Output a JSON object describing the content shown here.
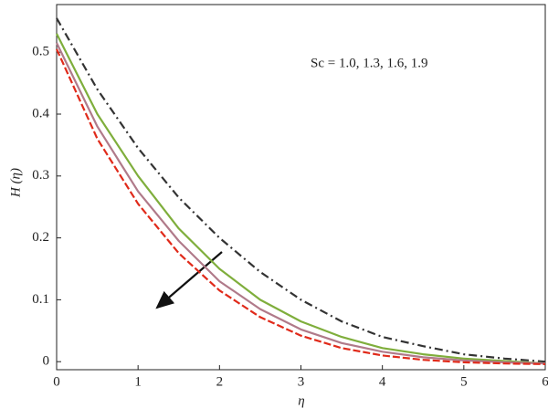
{
  "chart_data": {
    "type": "line",
    "x_label": "η",
    "y_label": "H (η)",
    "annotation": "Sc = 1.0, 1.3, 1.6, 1.9",
    "x": [
      0,
      0.5,
      1,
      1.5,
      2,
      2.5,
      3,
      3.5,
      4,
      4.5,
      5,
      5.5,
      6
    ],
    "series": [
      {
        "color": "#333333",
        "dash": "9,4,2,4",
        "values": [
          0.555,
          0.44,
          0.345,
          0.265,
          0.2,
          0.145,
          0.1,
          0.065,
          0.04,
          0.025,
          0.012,
          0.005,
          0
        ]
      },
      {
        "color": "#7fae3c",
        "dash": "none",
        "values": [
          0.53,
          0.4,
          0.3,
          0.215,
          0.15,
          0.1,
          0.065,
          0.04,
          0.022,
          0.012,
          0.005,
          0.001,
          -0.003
        ]
      },
      {
        "color": "#b07a8a",
        "dash": "none",
        "values": [
          0.515,
          0.38,
          0.275,
          0.195,
          0.13,
          0.085,
          0.052,
          0.03,
          0.016,
          0.007,
          0.002,
          -0.001,
          -0.003
        ]
      },
      {
        "color": "#e02a1a",
        "dash": "8,3",
        "values": [
          0.505,
          0.36,
          0.255,
          0.175,
          0.115,
          0.072,
          0.042,
          0.022,
          0.01,
          0.003,
          -0.001,
          -0.003,
          -0.004
        ]
      }
    ],
    "xlim": [
      0,
      6
    ],
    "ylim": [
      -0.013,
      0.577
    ],
    "xticks": [
      0,
      1,
      2,
      3,
      4,
      5,
      6
    ],
    "yticks": [
      0,
      0.1,
      0.2,
      0.3,
      0.4,
      0.5
    ]
  }
}
